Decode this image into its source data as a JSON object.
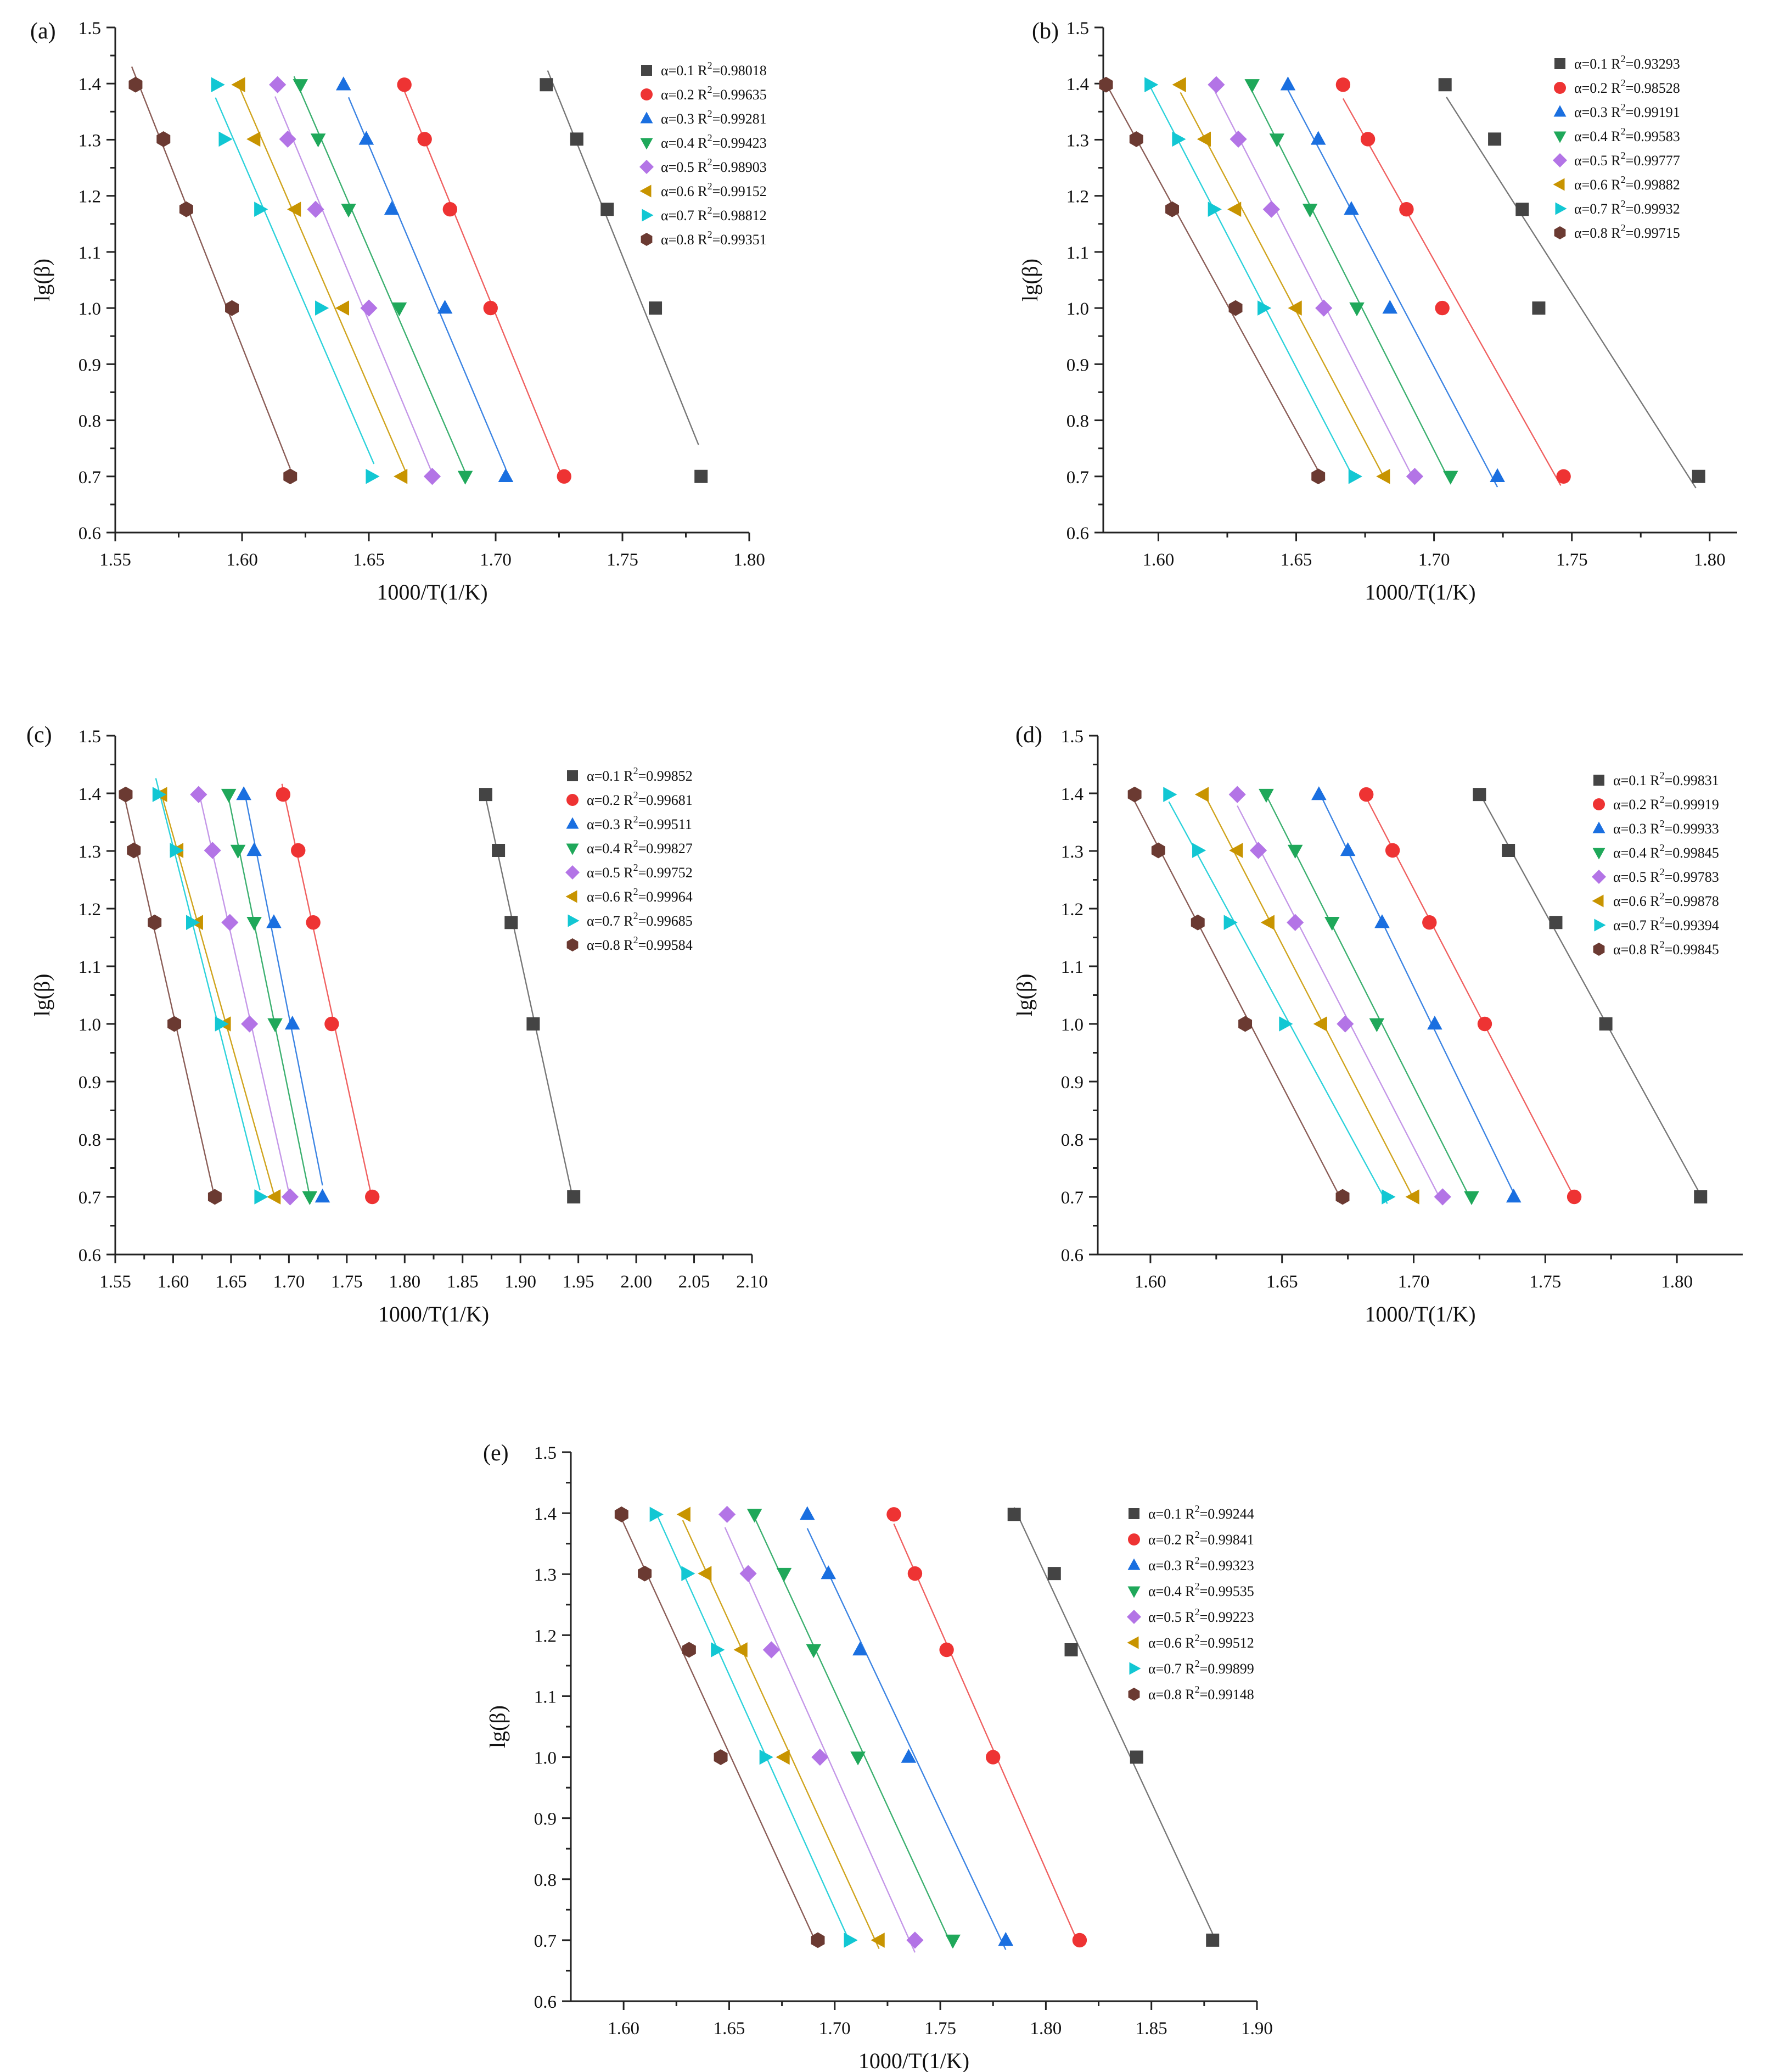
{
  "figure": {
    "colors": {
      "a01": "#444444",
      "a02": "#ee3333",
      "a03": "#1a6fe0",
      "a04": "#1fa85a",
      "a05": "#b374e6",
      "a06": "#c89400",
      "a07": "#12c7d3",
      "a08": "#6b3a32"
    },
    "line_colors": {
      "a01": "#777777",
      "a02": "#f06060",
      "a03": "#3c84e3",
      "a04": "#3cb070",
      "a05": "#c497e8",
      "a06": "#d0a41e",
      "a07": "#2dd2db",
      "a08": "#8a5d57"
    },
    "marker_shapes": {
      "a01": "square",
      "a02": "circle",
      "a03": "triangle-up",
      "a04": "triangle-down",
      "a05": "diamond",
      "a06": "triangle-left",
      "a07": "triangle-right",
      "a08": "hexagon"
    }
  },
  "chart_data": [
    {
      "panel": "(a)",
      "type": "scatter",
      "xlabel": "1000/T(1/K)",
      "ylabel": "lg(β)",
      "xlim": [
        1.55,
        1.8
      ],
      "ylim": [
        0.6,
        1.5
      ],
      "xticks": [
        "1.55",
        "1.60",
        "1.65",
        "1.70",
        "1.75",
        "1.80"
      ],
      "yticks": [
        "0.6",
        "0.7",
        "0.8",
        "0.9",
        "1.0",
        "1.1",
        "1.2",
        "1.3",
        "1.4",
        "1.5"
      ],
      "y": [
        0.7,
        1.0,
        1.176,
        1.301,
        1.398
      ],
      "series": [
        {
          "key": "a01",
          "label": "α=0.1 R",
          "r2": "=0.98018",
          "x": [
            1.781,
            1.763,
            1.744,
            1.732,
            1.72
          ],
          "fit_x": [
            1.7205,
            1.78
          ]
        },
        {
          "key": "a02",
          "label": "α=0.2 R",
          "r2": "=0.99635",
          "x": [
            1.727,
            1.698,
            1.682,
            1.672,
            1.664
          ],
          "fit_x": [
            1.664,
            1.727
          ]
        },
        {
          "key": "a03",
          "label": "α=0.3 R",
          "r2": "=0.99281",
          "x": [
            1.704,
            1.68,
            1.659,
            1.649,
            1.64
          ],
          "fit_x": [
            1.642,
            1.704
          ]
        },
        {
          "key": "a04",
          "label": "α=0.4 R",
          "r2": "=0.99423",
          "x": [
            1.688,
            1.662,
            1.642,
            1.63,
            1.623
          ],
          "fit_x": [
            1.6205,
            1.689
          ]
        },
        {
          "key": "a05",
          "label": "α=0.5 R",
          "r2": "=0.98903",
          "x": [
            1.675,
            1.65,
            1.629,
            1.618,
            1.614
          ],
          "fit_x": [
            1.613,
            1.676
          ]
        },
        {
          "key": "a06",
          "label": "α=0.6 R",
          "r2": "=0.99152",
          "x": [
            1.663,
            1.64,
            1.621,
            1.605,
            1.599
          ],
          "fit_x": [
            1.599,
            1.665
          ]
        },
        {
          "key": "a07",
          "label": "α=0.7 R",
          "r2": "=0.98812",
          "x": [
            1.651,
            1.631,
            1.607,
            1.593,
            1.59
          ],
          "fit_x": [
            1.5895,
            1.652
          ]
        },
        {
          "key": "a08",
          "label": "α=0.8 R",
          "r2": "=0.99351",
          "x": [
            1.619,
            1.596,
            1.578,
            1.569,
            1.558
          ],
          "fit_x": [
            1.5565,
            1.619
          ]
        }
      ]
    },
    {
      "panel": "(b)",
      "type": "scatter",
      "xlabel": "1000/T(1/K)",
      "ylabel": "lg(β)",
      "xlim": [
        1.58,
        1.81
      ],
      "ylim": [
        0.6,
        1.5
      ],
      "xticks": [
        "1.60",
        "1.65",
        "1.70",
        "1.75",
        "1.80"
      ],
      "yticks": [
        "0.6",
        "0.7",
        "0.8",
        "0.9",
        "1.0",
        "1.1",
        "1.2",
        "1.3",
        "1.4",
        "1.5"
      ],
      "y": [
        0.7,
        1.0,
        1.176,
        1.301,
        1.398
      ],
      "series": [
        {
          "key": "a01",
          "label": "α=0.1 R",
          "r2": "=0.93293",
          "x": [
            1.796,
            1.738,
            1.732,
            1.722,
            1.704
          ],
          "fit_x": [
            1.7045,
            1.795
          ]
        },
        {
          "key": "a02",
          "label": "α=0.2 R",
          "r2": "=0.98528",
          "x": [
            1.747,
            1.703,
            1.69,
            1.676,
            1.667
          ],
          "fit_x": [
            1.667,
            1.746
          ]
        },
        {
          "key": "a03",
          "label": "α=0.3 R",
          "r2": "=0.99191",
          "x": [
            1.723,
            1.684,
            1.67,
            1.658,
            1.647
          ],
          "fit_x": [
            1.647,
            1.723
          ]
        },
        {
          "key": "a04",
          "label": "α=0.4 R",
          "r2": "=0.99583",
          "x": [
            1.706,
            1.672,
            1.655,
            1.643,
            1.634
          ],
          "fit_x": [
            1.634,
            1.706
          ]
        },
        {
          "key": "a05",
          "label": "α=0.5 R",
          "r2": "=0.99777",
          "x": [
            1.693,
            1.66,
            1.641,
            1.629,
            1.621
          ],
          "fit_x": [
            1.6205,
            1.693
          ]
        },
        {
          "key": "a06",
          "label": "α=0.6 R",
          "r2": "=0.99882",
          "x": [
            1.682,
            1.65,
            1.628,
            1.617,
            1.608
          ],
          "fit_x": [
            1.608,
            1.682
          ]
        },
        {
          "key": "a07",
          "label": "α=0.7 R",
          "r2": "=0.99932",
          "x": [
            1.671,
            1.638,
            1.62,
            1.607,
            1.597
          ],
          "fit_x": [
            1.596,
            1.671
          ]
        },
        {
          "key": "a08",
          "label": "α=0.8 R",
          "r2": "=0.99715",
          "x": [
            1.658,
            1.628,
            1.605,
            1.592,
            1.581
          ],
          "fit_x": [
            1.581,
            1.658
          ]
        }
      ]
    },
    {
      "panel": "(c)",
      "type": "scatter",
      "xlabel": "1000/T(1/K)",
      "ylabel": "lg(β)",
      "xlim": [
        1.55,
        2.1
      ],
      "ylim": [
        0.6,
        1.5
      ],
      "xticks": [
        "1.55",
        "1.60",
        "1.65",
        "1.70",
        "1.75",
        "1.80",
        "1.85",
        "1.90",
        "1.95",
        "2.00",
        "2.05",
        "2.10"
      ],
      "yticks": [
        "0.6",
        "0.7",
        "0.8",
        "0.9",
        "1.0",
        "1.1",
        "1.2",
        "1.3",
        "1.4",
        "1.5"
      ],
      "y": [
        0.7,
        1.0,
        1.176,
        1.301,
        1.398
      ],
      "series": [
        {
          "key": "a01",
          "label": "α=0.1 R",
          "r2": "=0.99852",
          "x": [
            1.946,
            1.911,
            1.892,
            1.881,
            1.87
          ],
          "fit_x": [
            1.869,
            1.946
          ]
        },
        {
          "key": "a02",
          "label": "α=0.2 R",
          "r2": "=0.99681",
          "x": [
            1.772,
            1.737,
            1.721,
            1.708,
            1.695
          ],
          "fit_x": [
            1.694,
            1.772
          ]
        },
        {
          "key": "a03",
          "label": "α=0.3 R",
          "r2": "=0.99511",
          "x": [
            1.729,
            1.703,
            1.687,
            1.67,
            1.661
          ],
          "fit_x": [
            1.661,
            1.729
          ]
        },
        {
          "key": "a04",
          "label": "α=0.4 R",
          "r2": "=0.99827",
          "x": [
            1.718,
            1.688,
            1.67,
            1.656,
            1.648
          ],
          "fit_x": [
            1.648,
            1.718
          ]
        },
        {
          "key": "a05",
          "label": "α=0.5 R",
          "r2": "=0.99752",
          "x": [
            1.701,
            1.666,
            1.649,
            1.634,
            1.622
          ],
          "fit_x": [
            1.622,
            1.701
          ]
        },
        {
          "key": "a06",
          "label": "α=0.6 R",
          "r2": "=0.99964",
          "x": [
            1.688,
            1.645,
            1.621,
            1.604,
            1.59
          ],
          "fit_x": [
            1.589,
            1.688
          ]
        },
        {
          "key": "a07",
          "label": "α=0.7 R",
          "r2": "=0.99685",
          "x": [
            1.675,
            1.641,
            1.616,
            1.602,
            1.587
          ],
          "fit_x": [
            1.585,
            1.675
          ]
        },
        {
          "key": "a08",
          "label": "α=0.8 R",
          "r2": "=0.99584",
          "x": [
            1.636,
            1.601,
            1.584,
            1.566,
            1.559
          ],
          "fit_x": [
            1.558,
            1.636
          ]
        }
      ]
    },
    {
      "panel": "(d)",
      "type": "scatter",
      "xlabel": "1000/T(1/K)",
      "ylabel": "lg(β)",
      "xlim": [
        1.58,
        1.825
      ],
      "ylim": [
        0.6,
        1.5
      ],
      "xticks": [
        "1.60",
        "1.65",
        "1.70",
        "1.75",
        "1.80"
      ],
      "yticks": [
        "0.6",
        "0.7",
        "0.8",
        "0.9",
        "1.0",
        "1.1",
        "1.2",
        "1.3",
        "1.4",
        "1.5"
      ],
      "y": [
        0.7,
        1.0,
        1.176,
        1.301,
        1.398
      ],
      "series": [
        {
          "key": "a01",
          "label": "α=0.1 R",
          "r2": "=0.99831",
          "x": [
            1.809,
            1.773,
            1.754,
            1.736,
            1.725
          ],
          "fit_x": [
            1.725,
            1.809
          ]
        },
        {
          "key": "a02",
          "label": "α=0.2 R",
          "r2": "=0.99919",
          "x": [
            1.761,
            1.727,
            1.706,
            1.692,
            1.682
          ],
          "fit_x": [
            1.682,
            1.761
          ]
        },
        {
          "key": "a03",
          "label": "α=0.3 R",
          "r2": "=0.99933",
          "x": [
            1.738,
            1.708,
            1.688,
            1.675,
            1.664
          ],
          "fit_x": [
            1.664,
            1.738
          ]
        },
        {
          "key": "a04",
          "label": "α=0.4 R",
          "r2": "=0.99845",
          "x": [
            1.722,
            1.686,
            1.669,
            1.655,
            1.644
          ],
          "fit_x": [
            1.644,
            1.722
          ]
        },
        {
          "key": "a05",
          "label": "α=0.5 R",
          "r2": "=0.99783",
          "x": [
            1.711,
            1.674,
            1.655,
            1.641,
            1.633
          ],
          "fit_x": [
            1.633,
            1.711
          ]
        },
        {
          "key": "a06",
          "label": "α=0.6 R",
          "r2": "=0.99878",
          "x": [
            1.7,
            1.665,
            1.645,
            1.633,
            1.62
          ],
          "fit_x": [
            1.62,
            1.7
          ]
        },
        {
          "key": "a07",
          "label": "α=0.7 R",
          "r2": "=0.99394",
          "x": [
            1.69,
            1.651,
            1.63,
            1.618,
            1.607
          ],
          "fit_x": [
            1.607,
            1.69
          ]
        },
        {
          "key": "a08",
          "label": "α=0.8 R",
          "r2": "=0.99845",
          "x": [
            1.673,
            1.636,
            1.618,
            1.603,
            1.594
          ],
          "fit_x": [
            1.593,
            1.673
          ]
        }
      ]
    },
    {
      "panel": "(e)",
      "type": "scatter",
      "xlabel": "1000/T(1/K)",
      "ylabel": "lg(β)",
      "xlim": [
        1.575,
        1.9
      ],
      "ylim": [
        0.6,
        1.5
      ],
      "xticks": [
        "1.60",
        "1.65",
        "1.70",
        "1.75",
        "1.80",
        "1.85",
        "1.90"
      ],
      "yticks": [
        "0.6",
        "0.7",
        "0.8",
        "0.9",
        "1.0",
        "1.1",
        "1.2",
        "1.3",
        "1.4",
        "1.5"
      ],
      "y": [
        0.7,
        1.0,
        1.176,
        1.301,
        1.398
      ],
      "series": [
        {
          "key": "a01",
          "label": "α=0.1 R",
          "r2": "=0.99244",
          "x": [
            1.879,
            1.843,
            1.812,
            1.804,
            1.785
          ],
          "fit_x": [
            1.785,
            1.879
          ]
        },
        {
          "key": "a02",
          "label": "α=0.2 R",
          "r2": "=0.99841",
          "x": [
            1.816,
            1.775,
            1.753,
            1.738,
            1.728
          ],
          "fit_x": [
            1.728,
            1.816
          ]
        },
        {
          "key": "a03",
          "label": "α=0.3 R",
          "r2": "=0.99323",
          "x": [
            1.781,
            1.735,
            1.712,
            1.697,
            1.687
          ],
          "fit_x": [
            1.687,
            1.781
          ]
        },
        {
          "key": "a04",
          "label": "α=0.4 R",
          "r2": "=0.99535",
          "x": [
            1.756,
            1.711,
            1.69,
            1.676,
            1.662
          ],
          "fit_x": [
            1.662,
            1.756
          ]
        },
        {
          "key": "a05",
          "label": "α=0.5 R",
          "r2": "=0.99223",
          "x": [
            1.738,
            1.693,
            1.67,
            1.659,
            1.649
          ],
          "fit_x": [
            1.648,
            1.738
          ]
        },
        {
          "key": "a06",
          "label": "α=0.6 R",
          "r2": "=0.99512",
          "x": [
            1.721,
            1.676,
            1.656,
            1.639,
            1.629
          ],
          "fit_x": [
            1.628,
            1.721
          ]
        },
        {
          "key": "a07",
          "label": "α=0.7 R",
          "r2": "=0.99899",
          "x": [
            1.707,
            1.667,
            1.644,
            1.63,
            1.615
          ],
          "fit_x": [
            1.615,
            1.707
          ]
        },
        {
          "key": "a08",
          "label": "α=0.8 R",
          "r2": "=0.99148",
          "x": [
            1.692,
            1.646,
            1.631,
            1.61,
            1.599
          ],
          "fit_x": [
            1.598,
            1.692
          ]
        }
      ]
    }
  ]
}
